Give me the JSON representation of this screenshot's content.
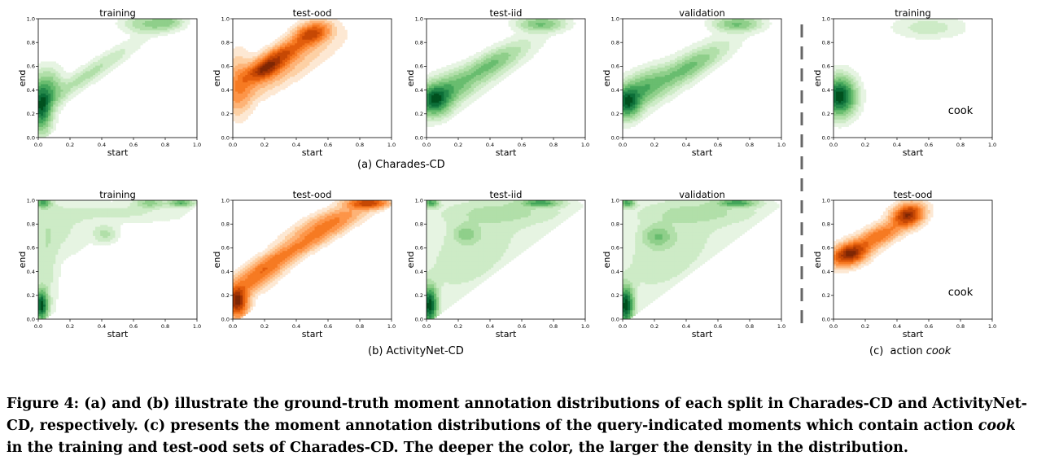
{
  "figure": {
    "subcaption_a": "(a) Charades-CD",
    "subcaption_b": "(b) ActivityNet-CD",
    "subcaption_c_prefix": "(c)  action ",
    "subcaption_c_em": "cook",
    "caption_parts": [
      "Figure 4: (a) and (b) illustrate the ground-truth moment annotation distributions of each split in Charades-CD and ActivityNet-CD, respectively. (c) presents the moment annotation distributions of the query-indicated moments which contain action ",
      "cook",
      " in the training and test-ood sets of Charades-CD. The deeper the color, the larger the density in the distribution."
    ]
  },
  "colors": {
    "green": [
      "#e6f4e2",
      "#cdebc6",
      "#b1dfa9",
      "#8fcf8a",
      "#69bd6f",
      "#43a55a",
      "#25894a",
      "#0c6e38",
      "#00511f"
    ],
    "orange": [
      "#fde8d3",
      "#fdd0a4",
      "#fdb377",
      "#fd9548",
      "#f67a22",
      "#e35e0d",
      "#c64804",
      "#a33404",
      "#7f2704"
    ]
  },
  "chart_data": [
    {
      "type": "heatmap",
      "panel": "a-training",
      "title": "training",
      "xlabel": "start",
      "ylabel": "end",
      "xlim": [
        0,
        1
      ],
      "ylim": [
        0,
        1
      ],
      "xticks": [
        "0.0",
        "0.2",
        "0.4",
        "0.6",
        "0.8",
        "1.0"
      ],
      "yticks": [
        "0.0",
        "0.2",
        "0.4",
        "0.6",
        "0.8",
        "1.0"
      ],
      "colormap": "green",
      "density_peaks": [
        {
          "x": 0.02,
          "y": 0.27,
          "sx": 0.04,
          "sy": 0.13,
          "w": 1.0,
          "rho": 0
        },
        {
          "x": 0.08,
          "y": 0.42,
          "sx": 0.05,
          "sy": 0.1,
          "w": 0.35,
          "rho": 0
        },
        {
          "x": 0.3,
          "y": 0.52,
          "sx": 0.2,
          "sy": 0.18,
          "w": 0.2,
          "rho": 0.95
        },
        {
          "x": 0.7,
          "y": 0.96,
          "sx": 0.1,
          "sy": 0.05,
          "w": 0.3,
          "rho": 0
        },
        {
          "x": 0.82,
          "y": 0.98,
          "sx": 0.06,
          "sy": 0.04,
          "w": 0.22,
          "rho": 0
        }
      ]
    },
    {
      "type": "heatmap",
      "panel": "a-test-ood",
      "title": "test-ood",
      "xlabel": "start",
      "ylabel": "end",
      "xlim": [
        0,
        1
      ],
      "ylim": [
        0,
        1
      ],
      "xticks": [
        "0.0",
        "0.2",
        "0.4",
        "0.6",
        "0.8",
        "1.0"
      ],
      "yticks": [
        "0.0",
        "0.2",
        "0.4",
        "0.6",
        "0.8",
        "1.0"
      ],
      "colormap": "orange",
      "density_peaks": [
        {
          "x": 0.2,
          "y": 0.58,
          "sx": 0.08,
          "sy": 0.07,
          "w": 1.0,
          "rho": 0.6
        },
        {
          "x": 0.5,
          "y": 0.88,
          "sx": 0.07,
          "sy": 0.06,
          "w": 0.85,
          "rho": 0.3
        },
        {
          "x": 0.33,
          "y": 0.72,
          "sx": 0.1,
          "sy": 0.08,
          "w": 0.65,
          "rho": 0.7
        },
        {
          "x": 0.04,
          "y": 0.45,
          "sx": 0.05,
          "sy": 0.15,
          "w": 0.35,
          "rho": 0
        },
        {
          "x": 0.25,
          "y": 0.52,
          "sx": 0.25,
          "sy": 0.2,
          "w": 0.2,
          "rho": 0.9
        }
      ]
    },
    {
      "type": "heatmap",
      "panel": "a-test-iid",
      "title": "test-iid",
      "xlabel": "start",
      "ylabel": "end",
      "xlim": [
        0,
        1
      ],
      "ylim": [
        0,
        1
      ],
      "xticks": [
        "0.0",
        "0.2",
        "0.4",
        "0.6",
        "0.8",
        "1.0"
      ],
      "yticks": [
        "0.0",
        "0.2",
        "0.4",
        "0.6",
        "0.8",
        "1.0"
      ],
      "colormap": "green",
      "density_peaks": [
        {
          "x": 0.05,
          "y": 0.32,
          "sx": 0.06,
          "sy": 0.08,
          "w": 1.0,
          "rho": 0
        },
        {
          "x": 0.12,
          "y": 0.4,
          "sx": 0.1,
          "sy": 0.1,
          "w": 0.5,
          "rho": 0.5
        },
        {
          "x": 0.4,
          "y": 0.62,
          "sx": 0.12,
          "sy": 0.1,
          "w": 0.4,
          "rho": 0.8
        },
        {
          "x": 0.72,
          "y": 0.96,
          "sx": 0.09,
          "sy": 0.04,
          "w": 0.55,
          "rho": 0
        },
        {
          "x": 0.3,
          "y": 0.5,
          "sx": 0.25,
          "sy": 0.22,
          "w": 0.22,
          "rho": 0.9
        }
      ]
    },
    {
      "type": "heatmap",
      "panel": "a-validation",
      "title": "validation",
      "xlabel": "start",
      "ylabel": "end",
      "xlim": [
        0,
        1
      ],
      "ylim": [
        0,
        1
      ],
      "xticks": [
        "0.0",
        "0.2",
        "0.4",
        "0.6",
        "0.8",
        "1.0"
      ],
      "yticks": [
        "0.0",
        "0.2",
        "0.4",
        "0.6",
        "0.8",
        "1.0"
      ],
      "colormap": "green",
      "density_peaks": [
        {
          "x": 0.03,
          "y": 0.3,
          "sx": 0.05,
          "sy": 0.08,
          "w": 1.0,
          "rho": 0
        },
        {
          "x": 0.12,
          "y": 0.42,
          "sx": 0.1,
          "sy": 0.1,
          "w": 0.5,
          "rho": 0.5
        },
        {
          "x": 0.42,
          "y": 0.6,
          "sx": 0.12,
          "sy": 0.1,
          "w": 0.35,
          "rho": 0.8
        },
        {
          "x": 0.72,
          "y": 0.96,
          "sx": 0.09,
          "sy": 0.04,
          "w": 0.5,
          "rho": 0
        },
        {
          "x": 0.3,
          "y": 0.5,
          "sx": 0.25,
          "sy": 0.22,
          "w": 0.22,
          "rho": 0.9
        }
      ]
    },
    {
      "type": "heatmap",
      "panel": "c-training",
      "title": "training",
      "xlabel": "start",
      "ylabel": "end",
      "xlim": [
        0,
        1
      ],
      "ylim": [
        0,
        1
      ],
      "xticks": [
        "0.0",
        "0.2",
        "0.4",
        "0.6",
        "0.8",
        "1.0"
      ],
      "yticks": [
        "0.0",
        "0.2",
        "0.4",
        "0.6",
        "0.8",
        "1.0"
      ],
      "colormap": "green",
      "annotation": "cook",
      "density_peaks": [
        {
          "x": 0.04,
          "y": 0.35,
          "sx": 0.06,
          "sy": 0.1,
          "w": 1.0,
          "rho": 0
        },
        {
          "x": 0.6,
          "y": 0.93,
          "sx": 0.14,
          "sy": 0.06,
          "w": 0.12,
          "rho": 0
        }
      ]
    },
    {
      "type": "heatmap",
      "panel": "b-training",
      "title": "training",
      "xlabel": "start",
      "ylabel": "end",
      "xlim": [
        0,
        1
      ],
      "ylim": [
        0,
        1
      ],
      "xticks": [
        "0.0",
        "0.2",
        "0.4",
        "0.6",
        "0.8",
        "1.0"
      ],
      "yticks": [
        "0.0",
        "0.2",
        "0.4",
        "0.6",
        "0.8",
        "1.0"
      ],
      "colormap": "green",
      "density_peaks": [
        {
          "x": 0.02,
          "y": 0.12,
          "sx": 0.025,
          "sy": 0.08,
          "w": 1.0,
          "rho": 0
        },
        {
          "x": 0.03,
          "y": 0.98,
          "sx": 0.03,
          "sy": 0.025,
          "w": 0.55,
          "rho": 0
        },
        {
          "x": 0.9,
          "y": 0.98,
          "sx": 0.05,
          "sy": 0.02,
          "w": 0.5,
          "rho": 0
        },
        {
          "x": 0.7,
          "y": 0.98,
          "sx": 0.06,
          "sy": 0.025,
          "w": 0.3,
          "rho": 0
        },
        {
          "x": 0.42,
          "y": 0.72,
          "sx": 0.05,
          "sy": 0.05,
          "w": 0.18,
          "rho": 0
        },
        {
          "x": 0.15,
          "y": 0.75,
          "sx": 0.12,
          "sy": 0.15,
          "w": 0.09,
          "rho": 0
        },
        {
          "x": 0.05,
          "y": 0.5,
          "sx": 0.05,
          "sy": 0.35,
          "w": 0.12,
          "rho": 0
        },
        {
          "x": 0.5,
          "y": 0.9,
          "sx": 0.3,
          "sy": 0.06,
          "w": 0.1,
          "rho": 0
        }
      ]
    },
    {
      "type": "heatmap",
      "panel": "b-test-ood",
      "title": "test-ood",
      "xlabel": "start",
      "ylabel": "end",
      "xlim": [
        0,
        1
      ],
      "ylim": [
        0,
        1
      ],
      "xticks": [
        "0.0",
        "0.2",
        "0.4",
        "0.6",
        "0.8",
        "1.0"
      ],
      "yticks": [
        "0.0",
        "0.2",
        "0.4",
        "0.6",
        "0.8",
        "1.0"
      ],
      "colormap": "orange",
      "density_peaks": [
        {
          "x": 0.03,
          "y": 0.15,
          "sx": 0.04,
          "sy": 0.08,
          "w": 1.0,
          "rho": 0
        },
        {
          "x": 0.85,
          "y": 0.98,
          "sx": 0.08,
          "sy": 0.03,
          "w": 0.75,
          "rho": 0
        },
        {
          "x": 0.4,
          "y": 0.6,
          "sx": 0.2,
          "sy": 0.15,
          "w": 0.38,
          "rho": 0.93
        },
        {
          "x": 0.15,
          "y": 0.35,
          "sx": 0.12,
          "sy": 0.12,
          "w": 0.42,
          "rho": 0.8
        },
        {
          "x": 0.6,
          "y": 0.82,
          "sx": 0.15,
          "sy": 0.1,
          "w": 0.35,
          "rho": 0.8
        }
      ]
    },
    {
      "type": "heatmap",
      "panel": "b-test-iid",
      "title": "test-iid",
      "xlabel": "start",
      "ylabel": "end",
      "xlim": [
        0,
        1
      ],
      "ylim": [
        0,
        1
      ],
      "xticks": [
        "0.0",
        "0.2",
        "0.4",
        "0.6",
        "0.8",
        "1.0"
      ],
      "yticks": [
        "0.0",
        "0.2",
        "0.4",
        "0.6",
        "0.8",
        "1.0"
      ],
      "colormap": "green",
      "density_peaks": [
        {
          "x": 0.02,
          "y": 0.12,
          "sx": 0.03,
          "sy": 0.1,
          "w": 1.0,
          "rho": 0
        },
        {
          "x": 0.03,
          "y": 0.98,
          "sx": 0.03,
          "sy": 0.025,
          "w": 0.55,
          "rho": 0
        },
        {
          "x": 0.72,
          "y": 0.98,
          "sx": 0.08,
          "sy": 0.02,
          "w": 0.55,
          "rho": 0
        },
        {
          "x": 0.25,
          "y": 0.72,
          "sx": 0.05,
          "sy": 0.05,
          "w": 0.25,
          "rho": 0
        },
        {
          "x": 0.3,
          "y": 0.6,
          "sx": 0.28,
          "sy": 0.35,
          "w": 0.12,
          "rho": 0.5
        },
        {
          "x": 0.5,
          "y": 0.9,
          "sx": 0.3,
          "sy": 0.07,
          "w": 0.12,
          "rho": 0
        }
      ]
    },
    {
      "type": "heatmap",
      "panel": "b-validation",
      "title": "validation",
      "xlabel": "start",
      "ylabel": "end",
      "xlim": [
        0,
        1
      ],
      "ylim": [
        0,
        1
      ],
      "xticks": [
        "0.0",
        "0.2",
        "0.4",
        "0.6",
        "0.8",
        "1.0"
      ],
      "yticks": [
        "0.0",
        "0.2",
        "0.4",
        "0.6",
        "0.8",
        "1.0"
      ],
      "colormap": "green",
      "density_peaks": [
        {
          "x": 0.02,
          "y": 0.12,
          "sx": 0.03,
          "sy": 0.1,
          "w": 1.0,
          "rho": 0
        },
        {
          "x": 0.03,
          "y": 0.98,
          "sx": 0.03,
          "sy": 0.025,
          "w": 0.55,
          "rho": 0
        },
        {
          "x": 0.72,
          "y": 0.98,
          "sx": 0.08,
          "sy": 0.02,
          "w": 0.55,
          "rho": 0
        },
        {
          "x": 0.22,
          "y": 0.7,
          "sx": 0.06,
          "sy": 0.06,
          "w": 0.3,
          "rho": 0
        },
        {
          "x": 0.3,
          "y": 0.6,
          "sx": 0.28,
          "sy": 0.35,
          "w": 0.12,
          "rho": 0.5
        },
        {
          "x": 0.5,
          "y": 0.9,
          "sx": 0.3,
          "sy": 0.07,
          "w": 0.12,
          "rho": 0
        }
      ]
    },
    {
      "type": "heatmap",
      "panel": "c-test-ood",
      "title": "test-ood",
      "xlabel": "start",
      "ylabel": "end",
      "xlim": [
        0,
        1
      ],
      "ylim": [
        0,
        1
      ],
      "xticks": [
        "0.0",
        "0.2",
        "0.4",
        "0.6",
        "0.8",
        "1.0"
      ],
      "yticks": [
        "0.0",
        "0.2",
        "0.4",
        "0.6",
        "0.8",
        "1.0"
      ],
      "colormap": "orange",
      "annotation": "cook",
      "density_peaks": [
        {
          "x": 0.1,
          "y": 0.55,
          "sx": 0.07,
          "sy": 0.06,
          "w": 1.0,
          "rho": 0.3
        },
        {
          "x": 0.47,
          "y": 0.88,
          "sx": 0.06,
          "sy": 0.06,
          "w": 0.95,
          "rho": 0.2
        },
        {
          "x": 0.28,
          "y": 0.7,
          "sx": 0.1,
          "sy": 0.08,
          "w": 0.5,
          "rho": 0.7
        }
      ]
    }
  ]
}
